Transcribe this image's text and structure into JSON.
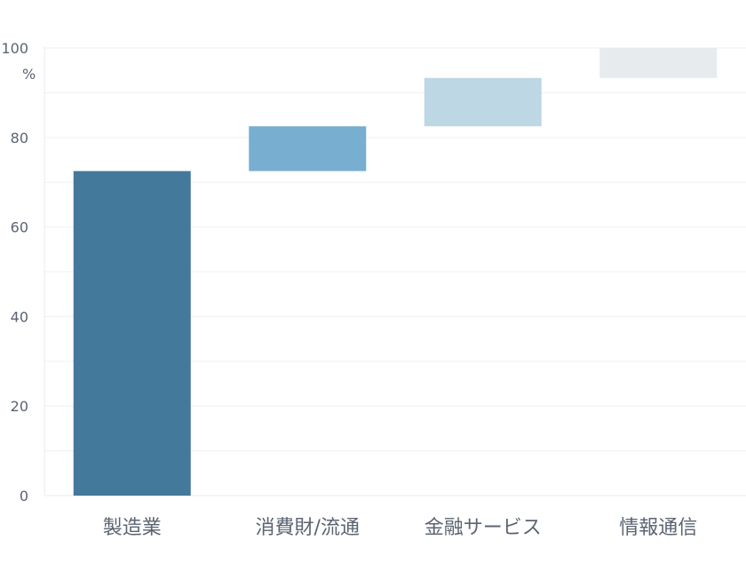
{
  "chart_data": {
    "type": "bar",
    "subtype": "waterfall",
    "title": "",
    "xlabel": "",
    "ylabel": "",
    "unit_label": "%",
    "ylim": [
      0,
      100
    ],
    "yticks": [
      "0",
      "20",
      "40",
      "60",
      "80",
      "100"
    ],
    "grid": true,
    "categories": [
      "製造業",
      "消費財/流通",
      "金融サービス",
      "情報通信"
    ],
    "values": [
      72.5,
      10,
      10.8,
      6.7
    ],
    "bases": [
      0,
      72.5,
      82.5,
      93.3
    ],
    "colors": [
      "#43799b",
      "#78aed0",
      "#bed7e4",
      "#e7ebee"
    ]
  }
}
